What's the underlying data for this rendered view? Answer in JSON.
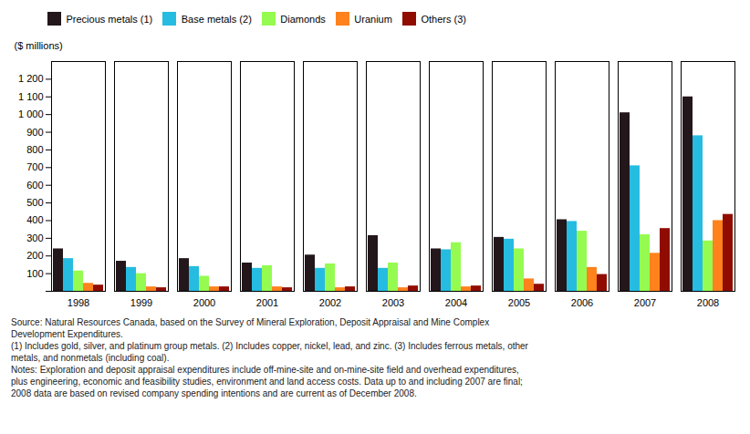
{
  "chart_data": {
    "type": "bar",
    "categories": [
      "1998",
      "1999",
      "2000",
      "2001",
      "2002",
      "2003",
      "2004",
      "2005",
      "2006",
      "2007",
      "2008"
    ],
    "series": [
      {
        "name": "Precious metals (1)",
        "values": [
          240,
          170,
          185,
          160,
          205,
          315,
          240,
          305,
          405,
          1010,
          1100
        ]
      },
      {
        "name": "Base metals (2)",
        "values": [
          185,
          135,
          140,
          130,
          130,
          130,
          235,
          295,
          395,
          710,
          880
        ]
      },
      {
        "name": "Diamonds",
        "values": [
          115,
          100,
          85,
          145,
          155,
          160,
          275,
          240,
          340,
          320,
          285
        ]
      },
      {
        "name": "Uranium",
        "values": [
          45,
          25,
          25,
          25,
          20,
          20,
          25,
          70,
          135,
          215,
          400
        ]
      },
      {
        "name": "Others (3)",
        "values": [
          35,
          20,
          25,
          20,
          25,
          30,
          30,
          40,
          95,
          355,
          435
        ]
      }
    ],
    "ylabel": "($ millions)",
    "ylim": [
      0,
      1300
    ],
    "yticks": [
      {
        "value": 0,
        "label": ""
      },
      100,
      200,
      300,
      400,
      500,
      600,
      700,
      800,
      900,
      {
        "value": 1000,
        "label": "1 000"
      },
      {
        "value": 1100,
        "label": "1 100"
      },
      {
        "value": 1200,
        "label": "1 200"
      }
    ],
    "grid": false,
    "legend": "upper left",
    "annotations": [
      "Source: Natural Resources Canada, based on the Survey of Mineral Exploration, Deposit Appraisal and Mine Complex",
      "Development Expenditures.",
      "(1) Includes gold, silver, and platinum group metals. (2) Includes copper, nickel, lead, and zinc. (3) Includes ferrous metals, other",
      "metals, and nonmetals (including coal).",
      "Notes: Exploration and deposit appraisal expenditures include off-mine-site and on-mine-site field and overhead expenditures,",
      "plus engineering, economic and feasibility studies, environment and land access costs. Data up to and including 2007 are final;",
      "2008 data are based on revised company spending intentions and are current as of December 2008."
    ]
  }
}
